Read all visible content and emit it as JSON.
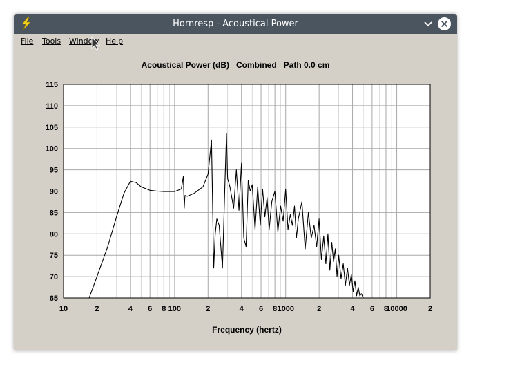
{
  "window": {
    "title": "Hornresp - Acoustical Power",
    "menu": [
      {
        "label": "File",
        "name": "menu-file"
      },
      {
        "label": "Tools",
        "name": "menu-tools"
      },
      {
        "label": "Window",
        "name": "menu-window"
      },
      {
        "label": "Help",
        "name": "menu-help"
      }
    ]
  },
  "chart_data": {
    "type": "line",
    "title": "Acoustical Power (dB)   Combined   Path 0.0 cm",
    "xlabel": "Frequency (hertz)",
    "ylabel": "",
    "xscale": "log",
    "xlim": [
      10,
      20000
    ],
    "ylim": [
      65,
      115
    ],
    "grid": true,
    "legend": "none",
    "line_color": "#000000",
    "x_tick_labels": [
      "10",
      "2",
      "4",
      "6",
      "8",
      "100",
      "2",
      "4",
      "6",
      "8",
      "1000",
      "2",
      "4",
      "6",
      "8",
      "10000",
      "2"
    ],
    "x_tick_values": [
      10,
      20,
      40,
      60,
      80,
      100,
      200,
      400,
      600,
      800,
      1000,
      2000,
      4000,
      6000,
      8000,
      10000,
      20000
    ],
    "y_ticks": [
      65,
      70,
      75,
      80,
      85,
      90,
      95,
      100,
      105,
      110,
      115
    ],
    "series": [
      {
        "x": [
          17,
          20,
          25,
          30,
          35,
          40,
          45,
          50,
          60,
          70,
          80,
          100,
          115,
          120,
          122,
          124,
          130,
          150,
          180,
          200,
          215,
          225,
          232,
          240,
          252,
          270,
          285,
          293,
          300,
          315,
          340,
          360,
          380,
          400,
          420,
          440,
          460,
          480,
          500,
          530,
          560,
          590,
          620,
          650,
          680,
          710,
          750,
          800,
          850,
          900,
          950,
          1000,
          1050,
          1100,
          1150,
          1200,
          1250,
          1300,
          1400,
          1500,
          1600,
          1700,
          1800,
          1900,
          2000,
          2100,
          2200,
          2300,
          2400,
          2500,
          2600,
          2700,
          2800,
          2900,
          3000,
          3150,
          3300,
          3450,
          3600,
          3750,
          3900,
          4050,
          4200,
          4350,
          4500,
          4650,
          4800,
          5000
        ],
        "y": [
          65,
          70,
          77,
          84,
          89.5,
          92.3,
          92,
          91,
          90.2,
          90,
          89.9,
          89.9,
          90.5,
          93.5,
          86,
          89,
          88.8,
          89.5,
          91,
          94,
          102,
          72,
          80,
          83.5,
          82,
          72,
          93,
          103.5,
          93,
          91,
          86,
          95,
          85.5,
          96.5,
          79,
          77,
          92.5,
          90,
          91.5,
          81,
          91,
          82,
          90.5,
          84,
          88.5,
          81,
          87.5,
          90,
          80.5,
          86.5,
          83,
          90.5,
          81,
          84.5,
          82,
          86.5,
          79,
          83.5,
          87.5,
          76.5,
          85,
          79,
          82,
          77,
          83.5,
          74,
          79.5,
          73,
          80,
          71.5,
          78,
          73.5,
          76.5,
          70,
          75,
          69.5,
          73,
          68,
          72,
          68,
          70.5,
          66.5,
          69,
          65.5,
          67.5,
          65.5,
          66,
          65
        ]
      }
    ]
  }
}
